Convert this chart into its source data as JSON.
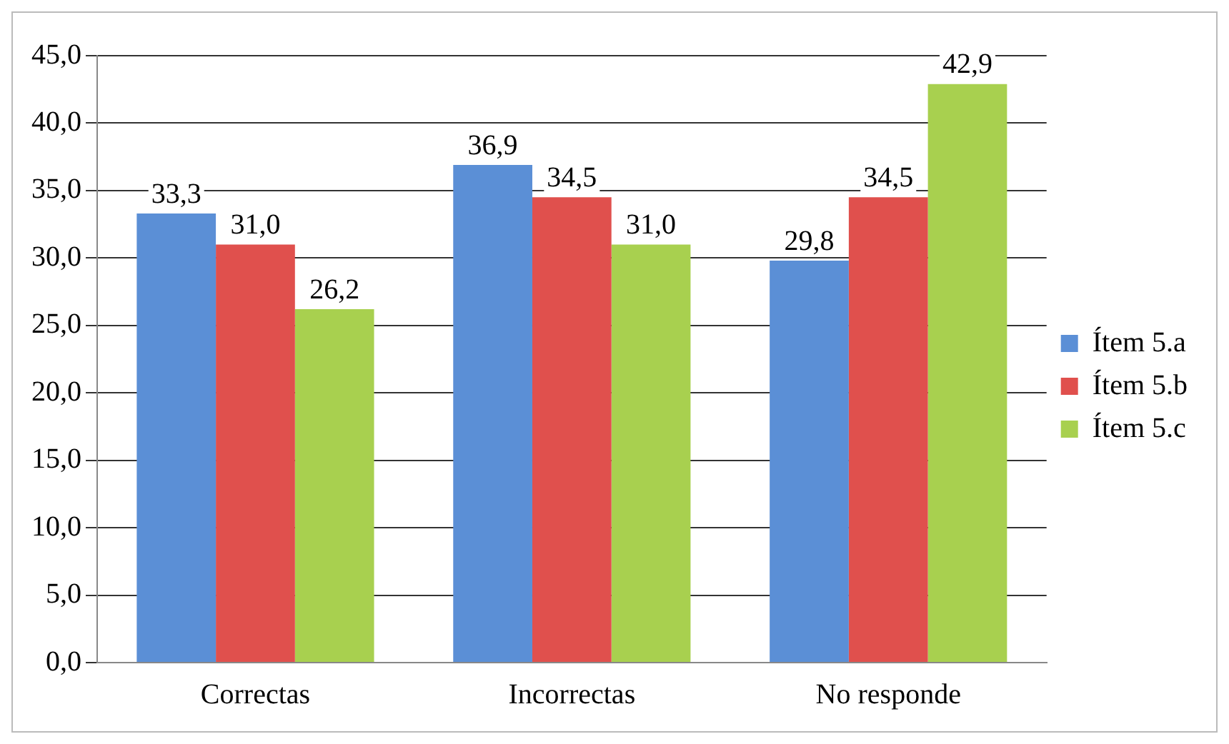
{
  "chart_data": {
    "type": "bar",
    "categories": [
      "Correctas",
      "Incorrectas",
      "No responde"
    ],
    "series": [
      {
        "name": "Ítem 5.a",
        "color": "#5b8fd6",
        "values": [
          33.3,
          36.9,
          29.8
        ],
        "value_labels": [
          "33,3",
          "36,9",
          "29,8"
        ]
      },
      {
        "name": "Ítem 5.b",
        "color": "#e0504d",
        "values": [
          31.0,
          34.5,
          34.5
        ],
        "value_labels": [
          "31,0",
          "34,5",
          "34,5"
        ]
      },
      {
        "name": "Ítem 5.c",
        "color": "#a8d04f",
        "values": [
          26.2,
          31.0,
          42.9
        ],
        "value_labels": [
          "26,2",
          "31,0",
          "42,9"
        ]
      }
    ],
    "ylim": [
      0,
      45
    ],
    "yticks": [
      {
        "value": 0,
        "label": "0,0"
      },
      {
        "value": 5,
        "label": "5,0"
      },
      {
        "value": 10,
        "label": "10,0"
      },
      {
        "value": 15,
        "label": "15,0"
      },
      {
        "value": 20,
        "label": "20,0"
      },
      {
        "value": 25,
        "label": "25,0"
      },
      {
        "value": 30,
        "label": "30,0"
      },
      {
        "value": 35,
        "label": "35,0"
      },
      {
        "value": 40,
        "label": "40,0"
      },
      {
        "value": 45,
        "label": "45,0"
      }
    ],
    "grid": "y",
    "legend": "right"
  }
}
